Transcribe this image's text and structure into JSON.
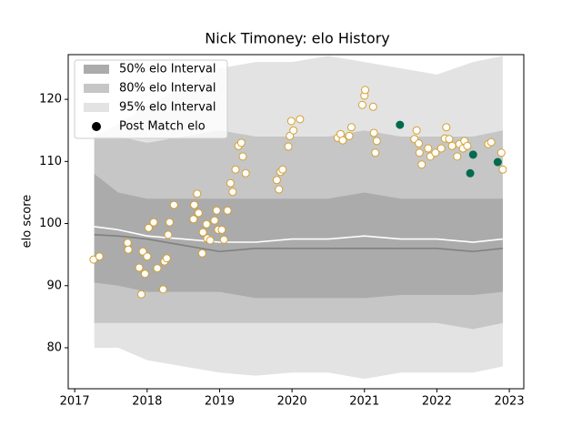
{
  "chart_data": {
    "type": "interval",
    "title": "Nick Timoney: elo History",
    "ylabel": "elo score",
    "xlim": [
      2016.91,
      2023.2
    ],
    "ylim": [
      73.4,
      127.2
    ],
    "xticks": [
      2017,
      2018,
      2019,
      2020,
      2021,
      2022,
      2023
    ],
    "yticks": [
      80,
      90,
      100,
      110,
      120
    ],
    "band_x": [
      2017.27,
      2017.6,
      2018,
      2018.5,
      2019,
      2019.5,
      2020,
      2020.5,
      2021,
      2021.5,
      2022,
      2022.5,
      2022.91
    ],
    "bands": [
      {
        "name": "95% elo Interval",
        "color": "#e3e3e3",
        "upper": [
          114,
          116,
          119,
          122,
          125,
          126,
          126,
          127,
          126,
          125,
          124,
          126,
          127
        ],
        "lower": [
          80,
          80,
          78,
          77,
          76,
          75.5,
          76,
          76,
          75,
          76,
          76,
          76,
          77
        ]
      },
      {
        "name": "80% elo Interval",
        "color": "#c6c6c6",
        "upper": [
          114,
          114,
          113,
          114,
          115,
          114,
          114,
          114,
          115,
          114,
          114,
          114,
          115
        ],
        "lower": [
          84,
          84,
          84,
          84,
          84,
          84,
          84,
          84,
          84,
          84,
          84,
          83,
          84
        ]
      },
      {
        "name": "50% elo Interval",
        "color": "#ababab",
        "upper": [
          108,
          105,
          104,
          104,
          104,
          104,
          104,
          104,
          105,
          104,
          104,
          104,
          104
        ],
        "lower": [
          90.5,
          90,
          89,
          89,
          89,
          88,
          88,
          88,
          88,
          88.5,
          88.5,
          88.5,
          89
        ]
      }
    ],
    "legend_order": [
      2,
      1,
      0
    ],
    "lines": [
      {
        "color": "#ffffff",
        "values": [
          99.5,
          99,
          98,
          97.5,
          97,
          97,
          97.5,
          97.5,
          98,
          97.5,
          97.5,
          97,
          97.5
        ]
      },
      {
        "color": "#808080",
        "values": [
          98.2,
          98,
          97.5,
          96.5,
          95.5,
          96,
          96,
          96,
          96,
          96,
          96,
          95.5,
          96
        ]
      }
    ],
    "points": [
      {
        "name": "Post Match elo",
        "legend_color": "#000000",
        "color": "#ffffff",
        "edgecolor": "#d4a030",
        "x": [
          2017.26,
          2017.34,
          2017.73,
          2017.74,
          2017.89,
          2017.92,
          2017.97,
          2017.94,
          2018.0,
          2018.02,
          2018.09,
          2018.14,
          2018.22,
          2018.24,
          2018.27,
          2018.29,
          2018.31,
          2018.37,
          2018.64,
          2018.65,
          2018.69,
          2018.71,
          2018.76,
          2018.77,
          2018.82,
          2018.83,
          2018.87,
          2018.93,
          2018.96,
          2018.98,
          2019.03,
          2019.06,
          2019.11,
          2019.15,
          2019.18,
          2019.22,
          2019.26,
          2019.3,
          2019.32,
          2019.36,
          2019.79,
          2019.82,
          2019.84,
          2019.87,
          2019.95,
          2019.97,
          2019.99,
          2020.02,
          2020.11,
          2020.63,
          2020.67,
          2020.7,
          2020.79,
          2020.82,
          2020.97,
          2021.0,
          2021.01,
          2021.12,
          2021.13,
          2021.17,
          2021.15,
          2021.69,
          2021.72,
          2021.75,
          2021.76,
          2021.79,
          2021.88,
          2021.91,
          2021.98,
          2022.06,
          2022.11,
          2022.13,
          2022.17,
          2022.21,
          2022.28,
          2022.31,
          2022.36,
          2022.38,
          2022.42,
          2022.71,
          2022.75,
          2022.89,
          2022.91
        ],
        "values": [
          94.2,
          94.7,
          96.9,
          95.8,
          92.9,
          88.6,
          91.9,
          95.5,
          94.7,
          99.3,
          100.2,
          92.8,
          89.4,
          93.9,
          94.4,
          98.2,
          100.2,
          103,
          100.7,
          103,
          104.8,
          101.7,
          95.2,
          98.6,
          99.9,
          97.6,
          97.3,
          100.5,
          102.1,
          99,
          99,
          97.4,
          102.1,
          106.5,
          105.1,
          108.7,
          112.5,
          113,
          110.8,
          108.1,
          107,
          105.5,
          108.3,
          108.7,
          112.4,
          114.1,
          116.5,
          115,
          116.8,
          113.8,
          114.4,
          113.4,
          114.1,
          115.5,
          119.1,
          120.6,
          121.5,
          118.8,
          114.6,
          113.3,
          111.4,
          113.6,
          115,
          112.9,
          111.4,
          109.5,
          112.1,
          110.8,
          111.4,
          112.1,
          113.7,
          115.5,
          113.6,
          112.5,
          110.8,
          112.8,
          112.1,
          113.3,
          112.5,
          112.8,
          113.1,
          111.4,
          108.7
        ]
      },
      {
        "color": "#006b4e",
        "edgecolor": "#006b4e",
        "x": [
          2021.49,
          2022.5,
          2022.46,
          2022.84
        ],
        "values": [
          115.9,
          111.1,
          108.1,
          109.9
        ]
      }
    ]
  }
}
